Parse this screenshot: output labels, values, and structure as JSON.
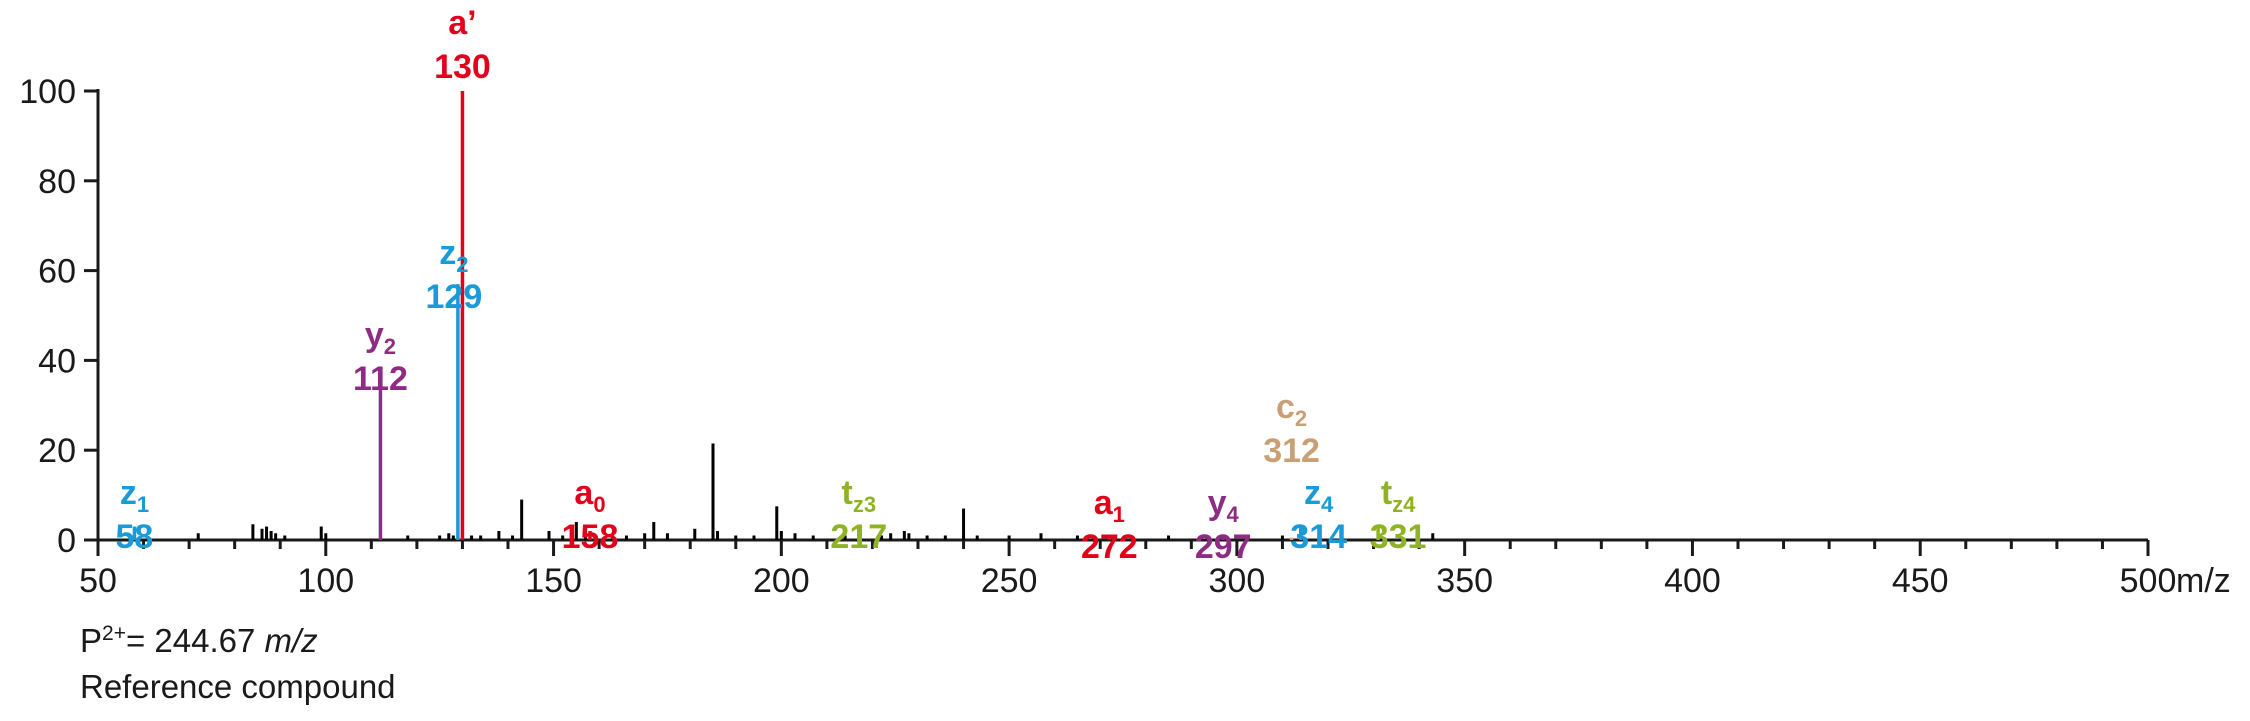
{
  "chart_data": {
    "type": "bar",
    "title": "",
    "xlabel": "m/z",
    "ylabel": "",
    "xlim": [
      50,
      500
    ],
    "ylim": [
      0,
      100
    ],
    "x_ticks": [
      50,
      100,
      150,
      200,
      250,
      300,
      350,
      400,
      450,
      500
    ],
    "y_ticks": [
      0,
      20,
      40,
      60,
      80,
      100
    ],
    "grid": false,
    "legend": "none",
    "series": [
      {
        "color": "#000000",
        "points": [
          [
            72,
            1.5
          ],
          [
            84,
            3.5
          ],
          [
            86,
            2.5
          ],
          [
            87,
            3
          ],
          [
            88,
            2
          ],
          [
            89,
            1.5
          ],
          [
            91,
            1
          ],
          [
            99,
            3
          ],
          [
            100,
            1.5
          ],
          [
            118,
            1
          ],
          [
            125,
            1
          ],
          [
            127,
            1.5
          ],
          [
            128,
            1
          ],
          [
            132,
            1
          ],
          [
            134,
            1
          ],
          [
            138,
            2
          ],
          [
            141,
            1
          ],
          [
            143,
            9
          ],
          [
            149,
            2
          ],
          [
            152,
            1
          ],
          [
            155,
            4
          ],
          [
            157,
            2
          ],
          [
            163,
            1
          ],
          [
            166,
            1
          ],
          [
            170,
            1.5
          ],
          [
            172,
            4
          ],
          [
            175,
            1.5
          ],
          [
            181,
            2.5
          ],
          [
            185,
            21.5
          ],
          [
            186,
            2
          ],
          [
            190,
            1
          ],
          [
            194,
            1
          ],
          [
            199,
            7.5
          ],
          [
            200,
            2
          ],
          [
            203,
            1.5
          ],
          [
            207,
            1
          ],
          [
            214,
            1
          ],
          [
            222,
            1
          ],
          [
            224,
            1.5
          ],
          [
            227,
            2
          ],
          [
            228,
            1.5
          ],
          [
            232,
            1
          ],
          [
            236,
            1
          ],
          [
            240,
            7
          ],
          [
            243,
            1
          ],
          [
            250,
            1
          ],
          [
            257,
            1.5
          ],
          [
            265,
            1
          ],
          [
            285,
            1
          ],
          [
            310,
            1
          ],
          [
            343,
            1.5
          ]
        ]
      },
      {
        "color": "#E2001A",
        "points": [
          [
            130,
            100
          ],
          [
            158,
            2
          ],
          [
            272,
            0.5
          ]
        ]
      },
      {
        "color": "#1A9AD6",
        "points": [
          [
            58,
            3
          ],
          [
            129,
            57
          ],
          [
            314,
            3
          ]
        ]
      },
      {
        "color": "#8E2C83",
        "points": [
          [
            112,
            36.5
          ],
          [
            297,
            0.5
          ]
        ]
      },
      {
        "color": "#8FB325",
        "points": [
          [
            217,
            3
          ],
          [
            331,
            3
          ]
        ]
      },
      {
        "color": "#C9A076",
        "points": [
          [
            312,
            0.5
          ]
        ]
      }
    ],
    "annotations": [
      {
        "ion": "z",
        "sub": "1",
        "mz": "58",
        "x": 58,
        "color": "#1A9AD6"
      },
      {
        "ion": "y",
        "sub": "2",
        "mz": "112",
        "x": 112,
        "color": "#8E2C83"
      },
      {
        "ion": "z",
        "sub": "2",
        "mz": "129",
        "x": 129,
        "color": "#1A9AD6"
      },
      {
        "ion": "a’",
        "sub": "",
        "mz": "130",
        "x": 130,
        "color": "#E2001A"
      },
      {
        "ion": "a",
        "sub": "0",
        "mz": "158",
        "x": 158,
        "color": "#E2001A"
      },
      {
        "ion": "t",
        "sub": "z3",
        "mz": "217",
        "x": 217,
        "color": "#8FB325"
      },
      {
        "ion": "a",
        "sub": "1",
        "mz": "272",
        "x": 272,
        "color": "#E2001A"
      },
      {
        "ion": "y",
        "sub": "4",
        "mz": "297",
        "x": 297,
        "color": "#8E2C83"
      },
      {
        "ion": "c",
        "sub": "2",
        "mz": "312",
        "x": 312,
        "color": "#C9A076"
      },
      {
        "ion": "z",
        "sub": "4",
        "mz": "314",
        "x": 314,
        "color": "#1A9AD6"
      },
      {
        "ion": "t",
        "sub": "z4",
        "mz": "331",
        "x": 331,
        "color": "#8FB325"
      }
    ]
  },
  "caption": {
    "precursor_prefix": "P",
    "precursor_charge": "2+",
    "precursor_value": "= 244.67 ",
    "precursor_unit": "m/z",
    "compound": "Reference compound"
  }
}
